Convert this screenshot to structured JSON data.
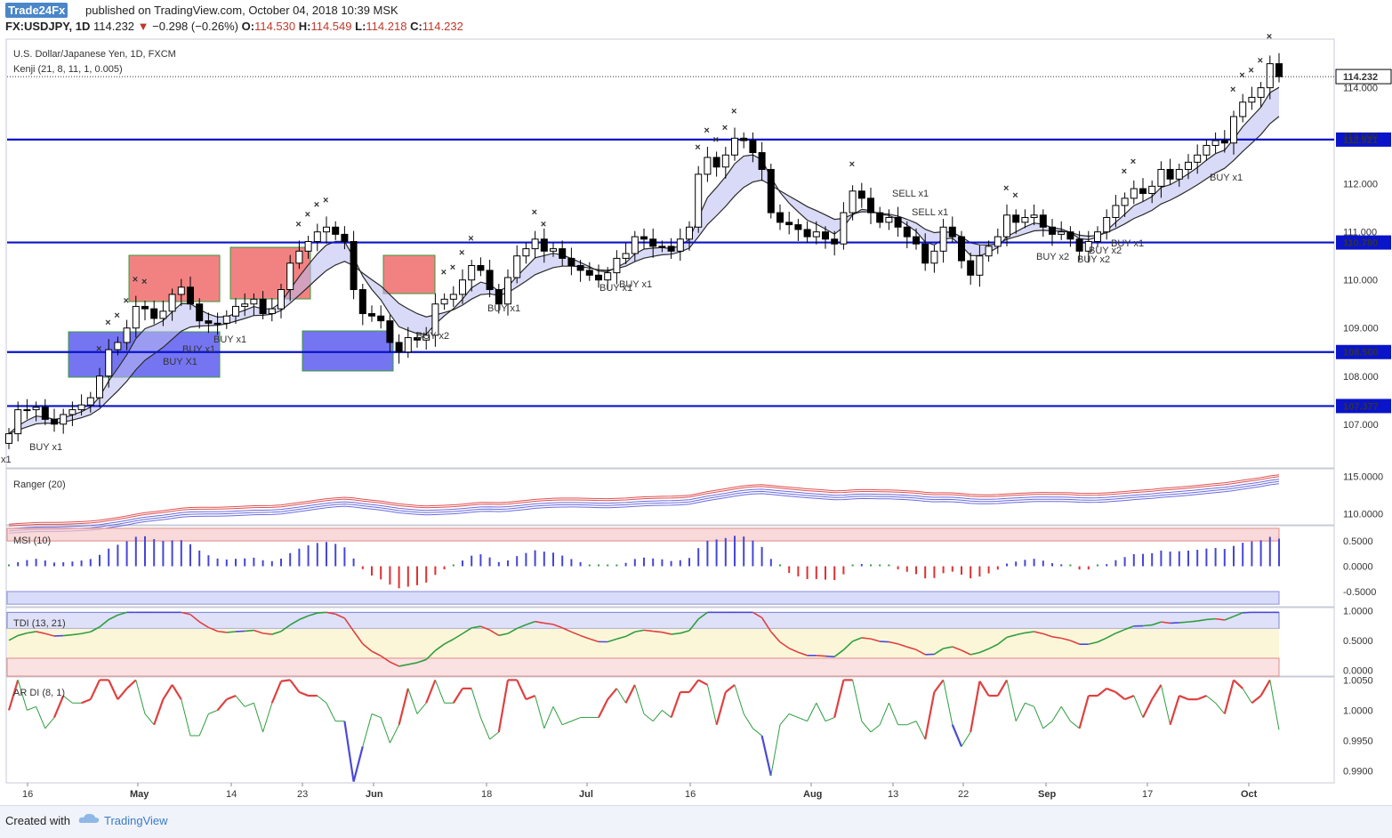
{
  "header": {
    "publisher": "Trade24Fx",
    "published_text": "published on TradingView.com, October 04, 2018 10:39 MSK",
    "symbol": "FX:USDJPY, 1D",
    "last": "114.232",
    "change_arrow": "▼",
    "change": "−0.298 (−0.26%)",
    "o_label": "O:",
    "o": "114.530",
    "h_label": "H:",
    "h": "114.549",
    "l_label": "L:",
    "l": "114.218",
    "c_label": "C:",
    "c": "114.232"
  },
  "main_pane": {
    "title": "U.S. Dollar/Japanese Yen, 1D, FXCM",
    "indicator": "Kenji (21, 8, 11, 1, 0.005)",
    "price_ticks": [
      "107.000",
      "108.000",
      "109.000",
      "110.000",
      "111.000",
      "112.000",
      "113.000",
      "114.000"
    ],
    "levels": [
      {
        "value": 112.921,
        "label": "112.921"
      },
      {
        "value": 110.78,
        "label": "110.780"
      },
      {
        "value": 108.5,
        "label": "108.500"
      },
      {
        "value": 107.377,
        "label": "107.377"
      }
    ],
    "last_price_label": "114.232",
    "annotations": [
      {
        "text": "BUY x1",
        "color": "#6a6adf"
      },
      {
        "text": "BUY x1",
        "color": "#6a6adf"
      },
      {
        "text": "BUY X1",
        "color": "#6a6adf"
      },
      {
        "text": "BUY x1",
        "color": "#6a6adf"
      },
      {
        "text": "BUY x1",
        "color": "#6a6adf"
      },
      {
        "text": "BUY x2",
        "color": "#6a6adf"
      },
      {
        "text": "BUY x1",
        "color": "#6a6adf"
      },
      {
        "text": "BUY x1",
        "color": "#6a6adf"
      },
      {
        "text": "BUY x1",
        "color": "#6a6adf"
      },
      {
        "text": "SELL x1",
        "color": "#e05050"
      },
      {
        "text": "SELL x1",
        "color": "#e05050"
      },
      {
        "text": "BUY x2",
        "color": "#6a6adf"
      },
      {
        "text": "BUY x2",
        "color": "#6a6adf"
      },
      {
        "text": "BUY x2",
        "color": "#6a6adf"
      },
      {
        "text": "BUY x1",
        "color": "#6a6adf"
      },
      {
        "text": "BUY x1",
        "color": "#6a6adf"
      },
      {
        "text": "x1",
        "color": "#6a6adf"
      }
    ]
  },
  "ranger_pane": {
    "title": "Ranger (20)",
    "ticks": [
      "115.0000",
      "110.0000"
    ]
  },
  "msi_pane": {
    "title": "MSI (10)",
    "ticks": [
      "0.5000",
      "0.0000",
      "-0.5000"
    ]
  },
  "tdi_pane": {
    "title": "TDI (13, 21)",
    "ticks": [
      "1.0000",
      "0.5000",
      "0.0000"
    ]
  },
  "ardi_pane": {
    "title": "AR DI (8, 1)",
    "ticks": [
      "1.0050",
      "1.0000",
      "0.9950",
      "0.9900"
    ]
  },
  "time_axis": {
    "labels": [
      "16",
      "May",
      "14",
      "23",
      "Jun",
      "18",
      "Jul",
      "16",
      "Aug",
      "13",
      "22",
      "Sep",
      "17",
      "Oct"
    ]
  },
  "footer": {
    "created_with": "Created with",
    "brand": "TradingView"
  },
  "colors": {
    "up": "#ffffff",
    "down": "#000000",
    "level": "#0a14c8",
    "buy": "#6a6adf",
    "sell": "#e05050"
  },
  "chart_data": {
    "type": "candlestick",
    "title": "U.S. Dollar/Japanese Yen, 1D, FXCM",
    "ylim": [
      106.2,
      114.9
    ],
    "x_start_label": "Apr 12, 2018",
    "close": [
      106.8,
      107.3,
      107.3,
      107.35,
      107.1,
      107.0,
      107.2,
      107.3,
      107.4,
      107.55,
      108.0,
      108.55,
      108.7,
      109.0,
      109.45,
      109.4,
      109.2,
      109.35,
      109.7,
      109.85,
      109.5,
      109.15,
      109.1,
      109.1,
      109.25,
      109.45,
      109.5,
      109.6,
      109.3,
      109.4,
      109.8,
      110.35,
      110.6,
      110.8,
      111.0,
      111.1,
      110.95,
      110.8,
      109.8,
      109.3,
      109.25,
      109.15,
      108.7,
      108.5,
      108.8,
      108.75,
      108.85,
      109.5,
      109.6,
      109.7,
      110.0,
      110.3,
      110.2,
      109.8,
      109.5,
      110.05,
      110.5,
      110.65,
      110.85,
      110.6,
      110.65,
      110.45,
      110.3,
      110.2,
      110.1,
      110.0,
      110.15,
      110.45,
      110.55,
      110.9,
      110.85,
      110.7,
      110.7,
      110.6,
      110.85,
      111.1,
      112.2,
      112.55,
      112.35,
      112.6,
      112.95,
      112.9,
      112.65,
      112.3,
      111.4,
      111.2,
      111.15,
      111.05,
      110.9,
      111.0,
      110.85,
      110.75,
      111.4,
      111.85,
      111.7,
      111.4,
      111.2,
      111.3,
      111.1,
      110.9,
      110.75,
      110.35,
      110.6,
      111.1,
      110.9,
      110.4,
      110.1,
      110.5,
      110.7,
      110.9,
      111.35,
      111.2,
      111.3,
      111.35,
      111.1,
      110.95,
      111.0,
      110.85,
      110.6,
      110.8,
      111.0,
      111.3,
      111.55,
      111.7,
      111.9,
      111.8,
      111.95,
      112.3,
      112.1,
      112.3,
      112.45,
      112.6,
      112.8,
      112.9,
      112.85,
      113.4,
      113.7,
      113.8,
      114.0,
      114.5,
      114.23
    ],
    "indicators": [
      "Kenji",
      "Ranger",
      "MSI",
      "TDI",
      "AR DI"
    ]
  }
}
